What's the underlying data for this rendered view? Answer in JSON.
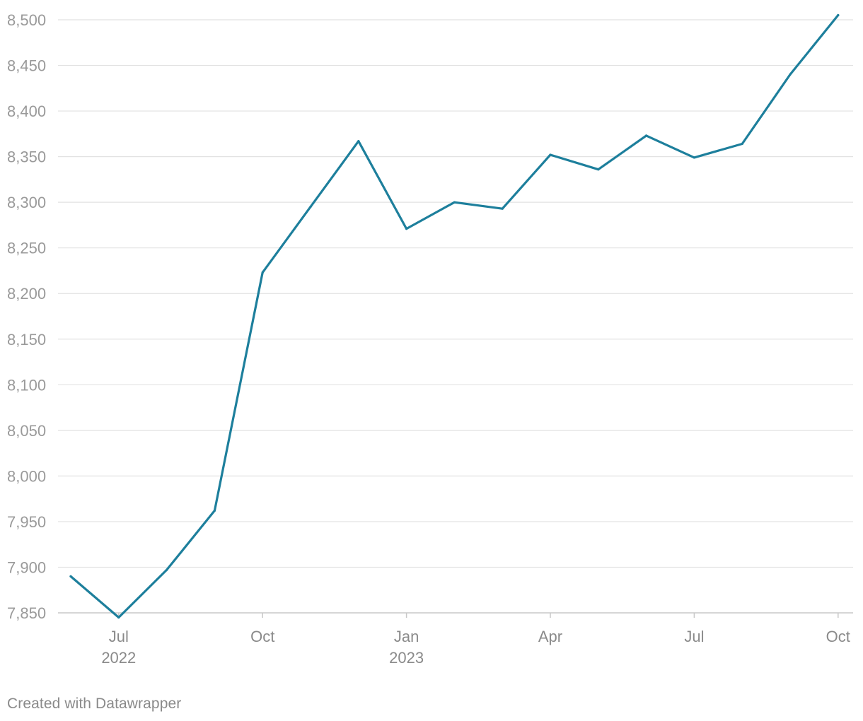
{
  "chart_data": {
    "type": "line",
    "title": "",
    "xlabel": "",
    "ylabel": "",
    "ylim": [
      7850,
      8500
    ],
    "yticks": [
      7850,
      7900,
      7950,
      8000,
      8050,
      8100,
      8150,
      8200,
      8250,
      8300,
      8350,
      8400,
      8450,
      8500
    ],
    "ytick_labels": [
      "7,850",
      "7,900",
      "7,950",
      "8,000",
      "8,050",
      "8,100",
      "8,150",
      "8,200",
      "8,250",
      "8,300",
      "8,350",
      "8,400",
      "8,450",
      "8,500"
    ],
    "xticks": [
      {
        "date": "2022-07",
        "label": "Jul",
        "sublabel": "2022"
      },
      {
        "date": "2022-10",
        "label": "Oct",
        "sublabel": ""
      },
      {
        "date": "2023-01",
        "label": "Jan",
        "sublabel": "2023"
      },
      {
        "date": "2023-04",
        "label": "Apr",
        "sublabel": ""
      },
      {
        "date": "2023-07",
        "label": "Jul",
        "sublabel": ""
      },
      {
        "date": "2023-10",
        "label": "Oct",
        "sublabel": ""
      }
    ],
    "grid": true,
    "line_color": "#1d7f9c",
    "gridline_color": "#e2e2e2",
    "axis_label_color": "#9a9a9a",
    "x": [
      "2022-06",
      "2022-07",
      "2022-08",
      "2022-09",
      "2022-10",
      "2022-11",
      "2022-12",
      "2023-01",
      "2023-02",
      "2023-03",
      "2023-04",
      "2023-05",
      "2023-06",
      "2023-07",
      "2023-08",
      "2023-09",
      "2023-10"
    ],
    "series": [
      {
        "values": [
          7890,
          7845,
          7897,
          7962,
          8223,
          8295,
          8367,
          8271,
          8300,
          8293,
          8352,
          8336,
          8373,
          8349,
          8364,
          8440,
          8505
        ]
      }
    ]
  },
  "footer": {
    "credit": "Created with Datawrapper"
  }
}
